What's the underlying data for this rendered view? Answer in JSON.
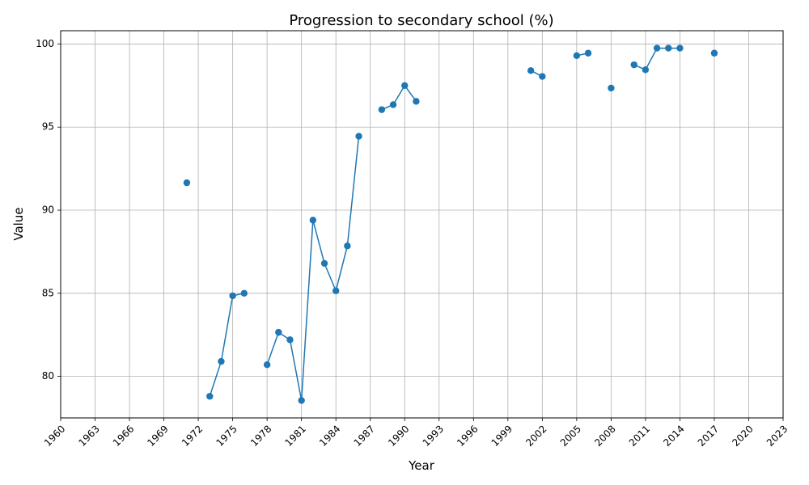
{
  "chart_data": {
    "type": "line",
    "title": "Progression to secondary school (%)",
    "xlabel": "Year",
    "ylabel": "Value",
    "xlim": [
      1960,
      2023
    ],
    "ylim": [
      77.5,
      100.8
    ],
    "grid": true,
    "x_ticks": [
      "1960",
      "1963",
      "1966",
      "1969",
      "1972",
      "1975",
      "1978",
      "1981",
      "1984",
      "1987",
      "1990",
      "1993",
      "1996",
      "1999",
      "2002",
      "2005",
      "2008",
      "2011",
      "2014",
      "2017",
      "2020",
      "2023"
    ],
    "y_ticks": [
      "80",
      "85",
      "90",
      "95",
      "100"
    ],
    "series": [
      {
        "color": "#1f77b4",
        "points": [
          [
            1971,
            91.65
          ],
          [
            1972,
            null
          ],
          [
            1973,
            78.8
          ],
          [
            1974,
            80.9
          ],
          [
            1975,
            84.85
          ],
          [
            1976,
            85.0
          ],
          [
            1977,
            null
          ],
          [
            1978,
            80.7
          ],
          [
            1979,
            82.65
          ],
          [
            1980,
            82.2
          ],
          [
            1981,
            78.55
          ],
          [
            1982,
            89.4
          ],
          [
            1983,
            86.8
          ],
          [
            1984,
            85.15
          ],
          [
            1985,
            87.85
          ],
          [
            1986,
            94.45
          ],
          [
            1987,
            null
          ],
          [
            1988,
            96.05
          ],
          [
            1989,
            96.35
          ],
          [
            1990,
            97.5
          ],
          [
            1991,
            96.55
          ],
          [
            1992,
            null
          ],
          [
            2001,
            98.4
          ],
          [
            2002,
            98.05
          ],
          [
            2003,
            null
          ],
          [
            2005,
            99.3
          ],
          [
            2006,
            99.45
          ],
          [
            2007,
            null
          ],
          [
            2008,
            97.35
          ],
          [
            2009,
            null
          ],
          [
            2010,
            98.75
          ],
          [
            2011,
            98.45
          ],
          [
            2012,
            99.75
          ],
          [
            2013,
            99.75
          ],
          [
            2014,
            99.75
          ],
          [
            2015,
            null
          ],
          [
            2017,
            99.45
          ]
        ]
      }
    ]
  }
}
